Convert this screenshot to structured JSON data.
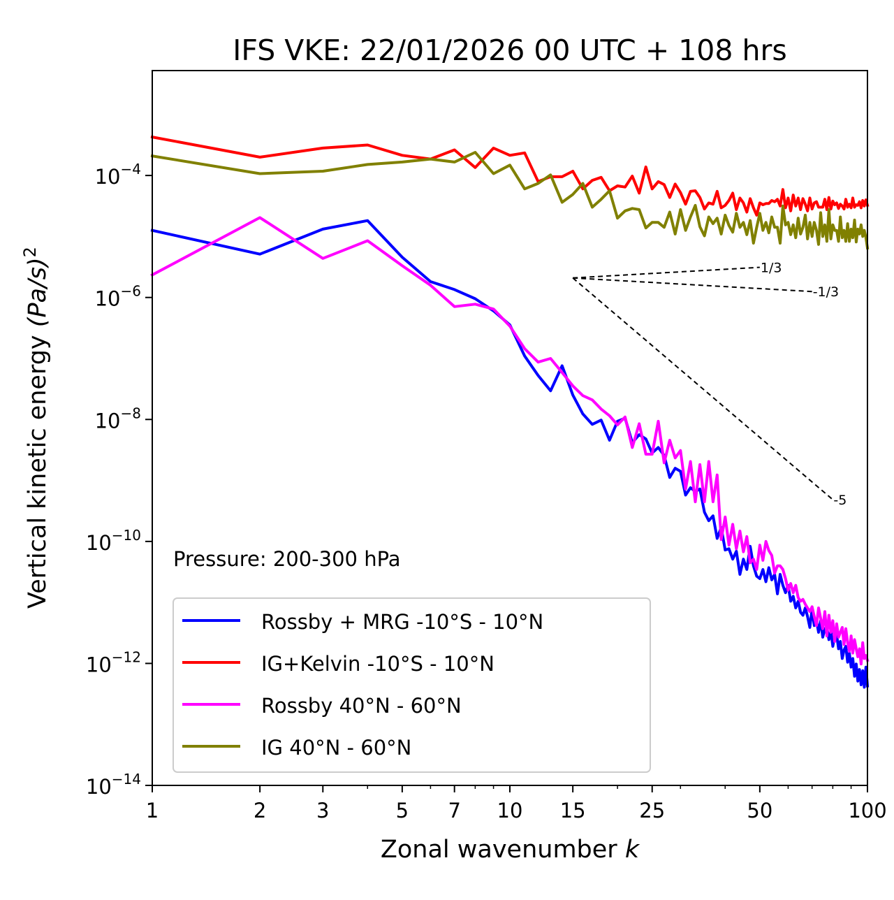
{
  "chart_data": {
    "type": "line",
    "title": "IFS VKE: 22/01/2026 00 UTC + 108 hrs",
    "xlabel": "Zonal wavenumber",
    "xlabel_var": "k",
    "ylabel": "Vertical kinetic energy",
    "ylabel_units": "(Pa/s)",
    "ylabel_units_exp": "2",
    "xscale": "log",
    "yscale": "log",
    "xlim": [
      1,
      100
    ],
    "ylim_log10": [
      -14,
      -2.28
    ],
    "grid": false,
    "xticks": [
      1,
      2,
      3,
      5,
      7,
      10,
      15,
      25,
      50,
      100
    ],
    "xtick_labels": [
      "1",
      "2",
      "3",
      "5",
      "7",
      "10",
      "15",
      "25",
      "50",
      "100"
    ],
    "yticks_log10": [
      -14,
      -12,
      -10,
      -8,
      -6,
      -4
    ],
    "ytick_labels": [
      {
        "base": "10",
        "exp": "−14"
      },
      {
        "base": "10",
        "exp": "−12"
      },
      {
        "base": "10",
        "exp": "−10"
      },
      {
        "base": "10",
        "exp": "−8"
      },
      {
        "base": "10",
        "exp": "−6"
      },
      {
        "base": "10",
        "exp": "−4"
      }
    ],
    "annotation": "Pressure: 200-300 hPa",
    "legend_position": "lower-left",
    "x": [
      1,
      2,
      3,
      4,
      5,
      6,
      7,
      8,
      9,
      10,
      11,
      12,
      13,
      14,
      15,
      16,
      17,
      18,
      19,
      20,
      21,
      22,
      23,
      24,
      25,
      26,
      27,
      28,
      29,
      30,
      31,
      32,
      33,
      34,
      35,
      36,
      37,
      38,
      39,
      40,
      41,
      42,
      43,
      44,
      45,
      46,
      47,
      48,
      49,
      50,
      51,
      52,
      53,
      54,
      55,
      56,
      57,
      58,
      59,
      60,
      61,
      62,
      63,
      64,
      65,
      66,
      67,
      68,
      69,
      70,
      71,
      72,
      73,
      74,
      75,
      76,
      77,
      78,
      79,
      80,
      81,
      82,
      83,
      84,
      85,
      86,
      87,
      88,
      89,
      90,
      91,
      92,
      93,
      94,
      95,
      96,
      97,
      98,
      99,
      100
    ],
    "series_values_are": "log10 of energy in (Pa/s)^2",
    "series": [
      {
        "name": "Rossby + MRG -10°S - 10°N",
        "color": "#0000ff",
        "log10_values": [
          -4.9,
          -5.29,
          -4.88,
          -4.74,
          -5.34,
          -5.74,
          -5.87,
          -6.02,
          -6.22,
          -6.45,
          -6.96,
          -7.28,
          -7.53,
          -7.12,
          -7.6,
          -7.91,
          -8.08,
          -8.01,
          -8.34,
          -8.03,
          -7.98,
          -8.38,
          -8.25,
          -8.32,
          -8.55,
          -8.46,
          -8.59,
          -8.95,
          -8.8,
          -8.85,
          -9.24,
          -9.12,
          -9.18,
          -9.14,
          -9.52,
          -9.66,
          -9.58,
          -9.95,
          -9.77,
          -10.14,
          -10.12,
          -10.29,
          -10.16,
          -10.54,
          -10.29,
          -10.46,
          -10.08,
          -10.4,
          -10.57,
          -10.61,
          -10.46,
          -10.66,
          -10.43,
          -10.63,
          -10.54,
          -10.86,
          -10.54,
          -10.72,
          -10.84,
          -10.72,
          -10.98,
          -10.9,
          -11.09,
          -10.98,
          -11.16,
          -11.21,
          -11.09,
          -11.23,
          -11.41,
          -11.11,
          -11.38,
          -11.3,
          -11.49,
          -11.3,
          -11.57,
          -11.43,
          -11.41,
          -11.61,
          -11.47,
          -11.72,
          -11.55,
          -11.53,
          -11.76,
          -11.64,
          -11.92,
          -11.78,
          -11.72,
          -11.98,
          -11.83,
          -12.06,
          -11.92,
          -12.21,
          -12.01,
          -12.29,
          -12.1,
          -12.35,
          -12.12,
          -12.39,
          -12.06,
          -12.37
        ]
      },
      {
        "name": "IG+Kelvin -10°S - 10°N",
        "color": "#ff0000",
        "log10_values": [
          -3.37,
          -3.7,
          -3.55,
          -3.5,
          -3.67,
          -3.73,
          -3.58,
          -3.87,
          -3.55,
          -3.67,
          -3.63,
          -4.1,
          -4.02,
          -4.02,
          -3.93,
          -4.22,
          -4.08,
          -4.03,
          -4.25,
          -4.17,
          -4.19,
          -4.01,
          -4.29,
          -3.86,
          -4.22,
          -4.1,
          -4.15,
          -4.36,
          -4.14,
          -4.28,
          -4.47,
          -4.26,
          -4.25,
          -4.36,
          -4.55,
          -4.45,
          -4.47,
          -4.26,
          -4.53,
          -4.49,
          -4.41,
          -4.29,
          -4.56,
          -4.37,
          -4.45,
          -4.6,
          -4.38,
          -4.53,
          -4.65,
          -4.45,
          -4.48,
          -4.46,
          -4.46,
          -4.41,
          -4.43,
          -4.39,
          -4.5,
          -4.23,
          -4.53,
          -4.37,
          -4.58,
          -4.32,
          -4.5,
          -4.37,
          -4.56,
          -4.38,
          -4.47,
          -4.58,
          -4.37,
          -4.55,
          -4.45,
          -4.43,
          -4.52,
          -4.52,
          -4.52,
          -4.39,
          -4.56,
          -4.36,
          -4.55,
          -4.42,
          -4.48,
          -4.45,
          -4.54,
          -4.47,
          -4.5,
          -4.55,
          -4.39,
          -4.52,
          -4.47,
          -4.53,
          -4.37,
          -4.52,
          -4.48,
          -4.49,
          -4.43,
          -4.53,
          -4.41,
          -4.5,
          -4.4,
          -4.49
        ]
      },
      {
        "name": "Rossby 40°N - 60°N",
        "color": "#ff00ff",
        "log10_values": [
          -5.63,
          -4.69,
          -5.36,
          -5.07,
          -5.48,
          -5.8,
          -6.15,
          -6.11,
          -6.19,
          -6.47,
          -6.84,
          -7.06,
          -7.0,
          -7.23,
          -7.45,
          -7.61,
          -7.68,
          -7.83,
          -7.94,
          -8.09,
          -7.96,
          -8.46,
          -8.07,
          -8.57,
          -8.57,
          -8.03,
          -8.71,
          -8.34,
          -8.63,
          -8.51,
          -9.14,
          -8.69,
          -9.35,
          -8.74,
          -9.35,
          -8.69,
          -9.35,
          -8.91,
          -9.97,
          -9.6,
          -10.06,
          -9.72,
          -10.12,
          -9.83,
          -10.17,
          -9.92,
          -10.35,
          -10.29,
          -10.46,
          -10.06,
          -10.31,
          -10.0,
          -10.15,
          -10.23,
          -10.52,
          -10.4,
          -10.4,
          -10.46,
          -10.61,
          -10.8,
          -10.69,
          -10.84,
          -10.72,
          -10.92,
          -10.98,
          -10.95,
          -11.03,
          -11.09,
          -11.15,
          -11.07,
          -11.23,
          -11.38,
          -11.09,
          -11.26,
          -11.43,
          -11.15,
          -11.55,
          -11.21,
          -11.49,
          -11.3,
          -11.64,
          -11.35,
          -11.57,
          -11.49,
          -11.41,
          -11.69,
          -11.43,
          -11.66,
          -11.8,
          -11.55,
          -11.83,
          -11.61,
          -11.76,
          -11.89,
          -11.76,
          -12.01,
          -11.66,
          -11.92,
          -11.87,
          -11.95
        ]
      },
      {
        "name": "IG 40°N - 60°N",
        "color": "#808000",
        "log10_values": [
          -3.68,
          -3.97,
          -3.93,
          -3.82,
          -3.78,
          -3.73,
          -3.78,
          -3.62,
          -3.97,
          -3.83,
          -4.22,
          -4.13,
          -3.99,
          -4.44,
          -4.31,
          -4.13,
          -4.52,
          -4.39,
          -4.25,
          -4.7,
          -4.58,
          -4.54,
          -4.56,
          -4.86,
          -4.77,
          -4.77,
          -4.85,
          -4.6,
          -4.96,
          -4.56,
          -4.9,
          -4.68,
          -4.49,
          -4.84,
          -4.99,
          -4.68,
          -4.79,
          -4.7,
          -4.96,
          -4.65,
          -4.82,
          -4.93,
          -4.62,
          -4.85,
          -4.77,
          -4.97,
          -4.74,
          -5.11,
          -4.85,
          -4.62,
          -4.9,
          -4.77,
          -4.94,
          -4.68,
          -4.85,
          -4.85,
          -5.11,
          -4.5,
          -4.81,
          -4.77,
          -4.97,
          -4.81,
          -5.02,
          -4.7,
          -4.96,
          -4.85,
          -4.65,
          -5.04,
          -4.77,
          -5.0,
          -4.77,
          -4.9,
          -5.13,
          -4.61,
          -5.0,
          -4.81,
          -5.08,
          -4.56,
          -5.04,
          -4.81,
          -4.9,
          -4.9,
          -5.08,
          -4.68,
          -5.02,
          -4.9,
          -5.08,
          -4.79,
          -5.08,
          -4.88,
          -5.02,
          -4.73,
          -5.09,
          -4.88,
          -4.96,
          -4.81,
          -5.0,
          -4.9,
          -5.02,
          -5.19
        ]
      }
    ],
    "reference_slopes": [
      {
        "label": "1/3",
        "slope": 0.3333,
        "k_start": 15,
        "k_end": 50,
        "log10_start": -5.68
      },
      {
        "label": "-1/3",
        "slope": -0.3333,
        "k_start": 15,
        "k_end": 70,
        "log10_start": -5.68
      },
      {
        "label": "-5",
        "slope": -5,
        "k_start": 15,
        "k_end": 80,
        "log10_start": -5.68
      }
    ]
  }
}
